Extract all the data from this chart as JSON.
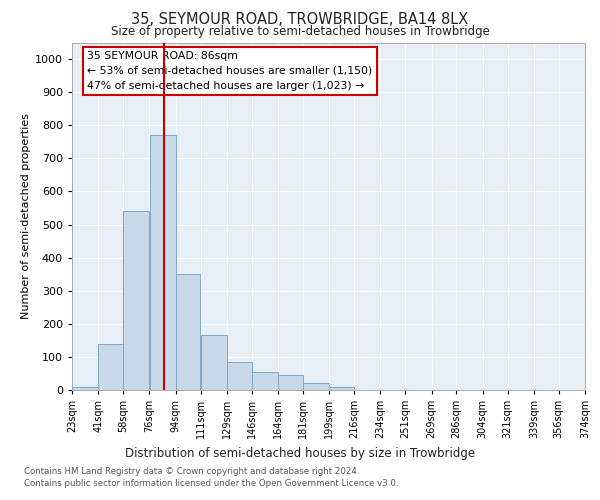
{
  "title1": "35, SEYMOUR ROAD, TROWBRIDGE, BA14 8LX",
  "title2": "Size of property relative to semi-detached houses in Trowbridge",
  "xlabel": "Distribution of semi-detached houses by size in Trowbridge",
  "ylabel": "Number of semi-detached properties",
  "footer1": "Contains HM Land Registry data © Crown copyright and database right 2024.",
  "footer2": "Contains public sector information licensed under the Open Government Licence v3.0.",
  "annotation_line1": "35 SEYMOUR ROAD: 86sqm",
  "annotation_line2": "← 53% of semi-detached houses are smaller (1,150)",
  "annotation_line3": "47% of semi-detached houses are larger (1,023) →",
  "bar_color": "#c9d9ea",
  "bar_edge_color": "#7aaac8",
  "redline_x": 86,
  "bin_edges": [
    23,
    41,
    58,
    76,
    94,
    111,
    129,
    146,
    164,
    181,
    199,
    216,
    234,
    251,
    269,
    286,
    304,
    321,
    339,
    356,
    374
  ],
  "bar_heights": [
    10,
    140,
    540,
    770,
    350,
    165,
    85,
    55,
    45,
    20,
    10,
    0,
    0,
    0,
    0,
    0,
    0,
    0,
    0,
    0
  ],
  "ylim": [
    0,
    1050
  ],
  "yticks": [
    0,
    100,
    200,
    300,
    400,
    500,
    600,
    700,
    800,
    900,
    1000
  ],
  "plot_background": "#e8eef5",
  "grid_color": "#ffffff",
  "annotation_box_color": "#ffffff",
  "annotation_box_edge": "#cc0000",
  "redline_color": "#cc0000",
  "fig_background": "#ffffff"
}
